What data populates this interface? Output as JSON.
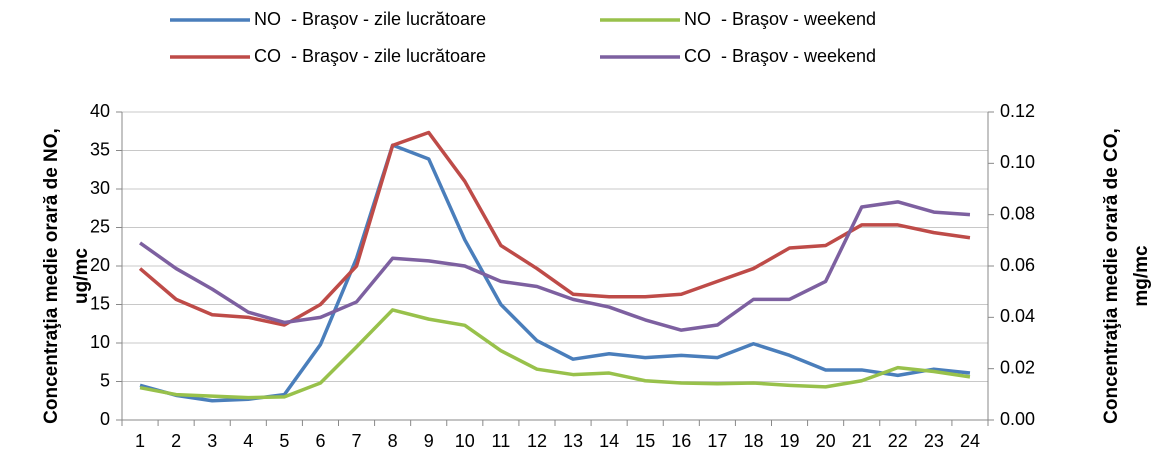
{
  "chart_data": {
    "type": "line",
    "ylabel": [
      "Concentraţia medie orară de NO,",
      "ug/mc"
    ],
    "y2label": [
      "Concentraţia medie orară de CO,",
      "mg/mc"
    ],
    "categories": [
      "1",
      "2",
      "3",
      "4",
      "5",
      "6",
      "7",
      "8",
      "9",
      "10",
      "11",
      "12",
      "13",
      "14",
      "15",
      "16",
      "17",
      "18",
      "19",
      "20",
      "21",
      "22",
      "23",
      "24"
    ],
    "series": [
      {
        "name": "NO  - Braşov - zile lucrătoare",
        "color": "#4a7ebb",
        "values": [
          4.5,
          3.2,
          2.5,
          2.7,
          3.3,
          9.8,
          21,
          35.7,
          33.9,
          23.4,
          15,
          10.3,
          7.9,
          8.6,
          8.1,
          8.4,
          8.1,
          9.9,
          8.4,
          6.5,
          6.5,
          5.8,
          6.6,
          6.1
        ]
      },
      {
        "name": "NO  - Braşov - weekend",
        "color": "#98c14b",
        "values": [
          4.2,
          3.3,
          3.1,
          2.9,
          3.0,
          4.8,
          9.5,
          14.3,
          13.1,
          12.3,
          9.0,
          6.6,
          5.9,
          6.1,
          5.1,
          4.8,
          4.7,
          4.8,
          4.5,
          4.3,
          5.1,
          6.8,
          6.3,
          5.6
        ]
      },
      {
        "name": "CO  - Braşov - zile lucrătoare",
        "color": "#be4b48",
        "axis": "y2",
        "values": [
          0.059,
          0.047,
          0.041,
          0.04,
          0.037,
          0.045,
          0.06,
          0.107,
          0.112,
          0.093,
          0.068,
          0.059,
          0.049,
          0.048,
          0.048,
          0.049,
          0.054,
          0.059,
          0.067,
          0.068,
          0.076,
          0.076,
          0.073,
          0.071
        ]
      },
      {
        "name": "CO  - Braşov - weekend",
        "color": "#7d60a0",
        "axis": "y2",
        "values": [
          0.069,
          0.059,
          0.051,
          0.042,
          0.038,
          0.04,
          0.046,
          0.063,
          0.062,
          0.06,
          0.054,
          0.052,
          0.047,
          0.044,
          0.039,
          0.035,
          0.037,
          0.047,
          0.047,
          0.054,
          0.083,
          0.085,
          0.081,
          0.08
        ]
      }
    ],
    "ylim": [
      0,
      40
    ],
    "yticks": [
      0,
      5,
      10,
      15,
      20,
      25,
      30,
      35,
      40
    ],
    "y2lim": [
      0,
      0.12
    ],
    "y2ticks": [
      {
        "value": 0,
        "label": "0.00"
      },
      0.02,
      0.04,
      0.06,
      0.08,
      {
        "value": 0.1,
        "label": "0.10"
      },
      0.12
    ],
    "grid": true
  }
}
